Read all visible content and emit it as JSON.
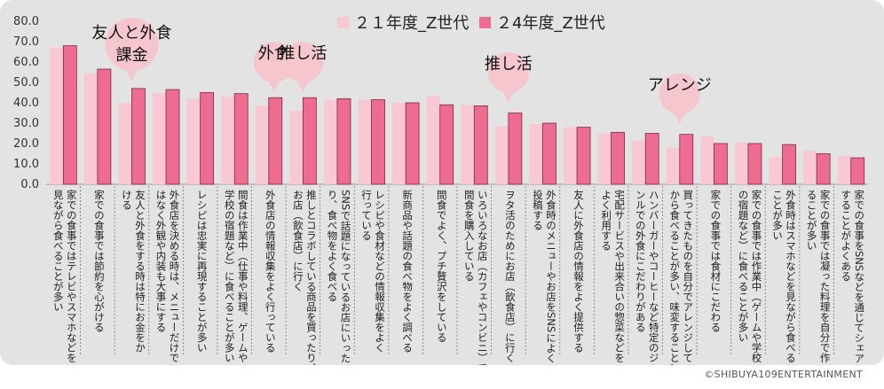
{
  "chart_data": {
    "type": "bar",
    "title": "",
    "xlabel": "",
    "ylabel": "",
    "ylim": [
      0,
      80
    ],
    "yticks": [
      "0.0",
      "10.0",
      "20.0",
      "30.0",
      "40.0",
      "50.0",
      "60.0",
      "70.0",
      "80.0"
    ],
    "grid": false,
    "legend_position": "top",
    "categories": [
      [
        "家での食事ではテレビやスマホなどを",
        "見ながら食べることが多い"
      ],
      [
        "家での食事では節約を心がける"
      ],
      [
        "友人と外食をする時は特にお金をか",
        "ける"
      ],
      [
        "外食店を決める時は、メニューだけで",
        "はなく外観や内装も大事にする"
      ],
      [
        "レシピは忠実に再現することが多い"
      ],
      [
        "間食は作業中（仕事や料理、ゲームや",
        "学校の宿題など）に食べることが多い"
      ],
      [
        "外食店の情報収集をよく行っている"
      ],
      [
        "推しとコラボしている商品を買ったり、",
        "お店（飲食店）に行く"
      ],
      [
        "SNSで話題になっているお店にいった",
        "り、食べ物をよく食べる"
      ],
      [
        "レシピや食材などの情報収集をよく",
        "行っている"
      ],
      [
        "新商品や話題の食べ物をよく調べる"
      ],
      [
        "間食でよく、プチ贅沢をしている"
      ],
      [
        "いろいろなお店（カフェやコンビニ）で",
        "間食を購入している"
      ],
      [
        "ヲタ活のためにお店（飲食店）に行く"
      ],
      [
        "外食時のメニューやお店をSNSによく",
        "投稿する"
      ],
      [
        "友人に外食店の情報をよく提供する"
      ],
      [
        "宅配サービスや出来合いの惣菜などを",
        "よく利用する"
      ],
      [
        "ハンバーガーやコーヒーなど特定のジャ",
        "ンルでの外食にこだわりがある"
      ],
      [
        "買ってきたものを自分でアレンジして",
        "から食べることが多い、味変すること…"
      ],
      [
        "家での食事では食材にこだわる"
      ],
      [
        "家での食事では作業中（ゲームや学校",
        "の宿題など）に食べることが多い"
      ],
      [
        "外食時はスマホなどを見ながら食べる",
        "ことが多い"
      ],
      [
        "家での食事では凝った料理を自分で作",
        "ることが多い"
      ],
      [
        "家での食事をSNSなどを通じてシェア",
        "することがよくある"
      ]
    ],
    "series": [
      {
        "name": "２１年度_Z世代",
        "color": "#f8c9d2",
        "values": [
          67.0,
          54.5,
          40.0,
          45.0,
          42.0,
          43.0,
          38.5,
          36.0,
          41.5,
          41.5,
          40.0,
          43.5,
          39.0,
          28.5,
          29.5,
          28.0,
          25.0,
          21.5,
          18.0,
          23.5,
          20.5,
          13.5,
          16.5,
          14.0
        ]
      },
      {
        "name": "２4年度_Z世代",
        "color": "#ee6b92",
        "values": [
          68.0,
          56.5,
          47.0,
          46.5,
          45.0,
          44.5,
          42.5,
          42.5,
          42.0,
          41.5,
          40.0,
          39.0,
          38.5,
          35.0,
          30.0,
          28.0,
          25.5,
          25.0,
          24.5,
          20.0,
          20.0,
          19.5,
          15.0,
          13.0
        ]
      }
    ],
    "annotations": [
      {
        "category_index": 2,
        "lines": [
          "友人と外食",
          "課金"
        ]
      },
      {
        "category_index": 6,
        "lines": [
          "外食"
        ]
      },
      {
        "category_index": 7,
        "lines": [
          "推し活"
        ]
      },
      {
        "category_index": 13,
        "lines": [
          "推し活"
        ]
      },
      {
        "category_index": 18,
        "lines": [
          "アレンジ"
        ]
      }
    ]
  },
  "footer": {
    "copyright": "©SHIBUYA109ENTERTAINMENT"
  }
}
